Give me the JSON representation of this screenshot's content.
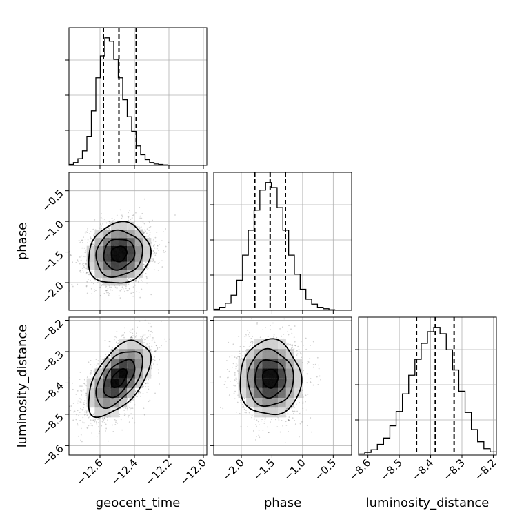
{
  "chart_data": {
    "type": "corner",
    "parameters": [
      "geocent_time",
      "phase",
      "luminosity_distance"
    ],
    "axis_labels": {
      "x": [
        "geocent_time",
        "phase",
        "luminosity_distance"
      ],
      "y": [
        "",
        "phase",
        "luminosity_distance"
      ]
    },
    "ranges": {
      "geocent_time": [
        -12.78,
        -11.98
      ],
      "phase": [
        -2.45,
        -0.2
      ],
      "luminosity_distance": [
        -8.63,
        -8.19
      ]
    },
    "ticks": {
      "geocent_time": {
        "values": [
          -12.6,
          -12.4,
          -12.2,
          -12.0
        ],
        "labels": [
          "−12.6",
          "−12.4",
          "−12.2",
          "−12.0"
        ]
      },
      "phase": {
        "values": [
          -2.0,
          -1.5,
          -1.0,
          -0.5
        ],
        "labels": [
          "−2.0",
          "−1.5",
          "−1.0",
          "−0.5"
        ]
      },
      "luminosity_distance": {
        "values": [
          -8.6,
          -8.5,
          -8.4,
          -8.3,
          -8.2
        ],
        "labels": [
          "−8.6",
          "−8.5",
          "−8.4",
          "−8.3",
          "−8.2"
        ]
      }
    },
    "quantiles": {
      "geocent_time": [
        -12.58,
        -12.49,
        -12.39
      ],
      "phase": [
        -1.78,
        -1.53,
        -1.28
      ],
      "luminosity_distance": [
        -8.445,
        -8.385,
        -8.325
      ]
    },
    "histograms": {
      "geocent_time": {
        "bin_edges": [
          -12.78,
          -12.754,
          -12.728,
          -12.702,
          -12.676,
          -12.65,
          -12.624,
          -12.598,
          -12.572,
          -12.546,
          -12.52,
          -12.494,
          -12.468,
          -12.442,
          -12.416,
          -12.39,
          -12.364,
          -12.338,
          -12.312,
          -12.286,
          -12.26,
          -12.234,
          -12.208,
          -12.182,
          -12.156
        ],
        "counts": [
          2,
          6,
          14,
          30,
          60,
          112,
          180,
          225,
          262,
          255,
          218,
          180,
          135,
          100,
          70,
          40,
          22,
          12,
          6,
          3,
          2,
          1,
          0,
          0
        ]
      },
      "phase": {
        "bin_edges": [
          -2.45,
          -2.356,
          -2.262,
          -2.168,
          -2.074,
          -1.98,
          -1.886,
          -1.792,
          -1.698,
          -1.604,
          -1.51,
          -1.416,
          -1.322,
          -1.228,
          -1.134,
          -1.04,
          -0.946,
          -0.852,
          -0.758,
          -0.664,
          -0.57,
          -0.476
        ],
        "counts": [
          2,
          6,
          14,
          30,
          60,
          110,
          160,
          200,
          240,
          255,
          245,
          205,
          160,
          110,
          72,
          42,
          22,
          12,
          6,
          3,
          1
        ]
      },
      "luminosity_distance": {
        "bin_edges": [
          -8.63,
          -8.61,
          -8.59,
          -8.57,
          -8.55,
          -8.53,
          -8.51,
          -8.49,
          -8.47,
          -8.45,
          -8.43,
          -8.41,
          -8.39,
          -8.37,
          -8.35,
          -8.33,
          -8.31,
          -8.29,
          -8.27,
          -8.25,
          -8.23,
          -8.21,
          -8.19
        ],
        "counts": [
          2,
          5,
          10,
          20,
          32,
          55,
          82,
          115,
          150,
          180,
          210,
          232,
          240,
          228,
          198,
          160,
          120,
          80,
          48,
          25,
          12,
          6
        ]
      }
    },
    "joint": [
      {
        "x": "geocent_time",
        "y": "phase",
        "center": [
          -12.49,
          -1.53
        ],
        "sigma": [
          0.09,
          0.25
        ],
        "correlation": 0.1,
        "scatter_points": 2600
      },
      {
        "x": "geocent_time",
        "y": "luminosity_distance",
        "center": [
          -12.49,
          -8.385
        ],
        "sigma": [
          0.09,
          0.06
        ],
        "correlation": 0.55,
        "scatter_points": 2600
      },
      {
        "x": "phase",
        "y": "luminosity_distance",
        "center": [
          -1.53,
          -8.385
        ],
        "sigma": [
          0.25,
          0.06
        ],
        "correlation": 0.0,
        "scatter_points": 2600
      }
    ],
    "contour_levels_sigma": [
      0.5,
      1.0,
      1.5,
      2.0
    ],
    "grid": true,
    "line_color": "#000000",
    "grid_color": "#b0b0b0",
    "scatter_color": "#000000"
  }
}
